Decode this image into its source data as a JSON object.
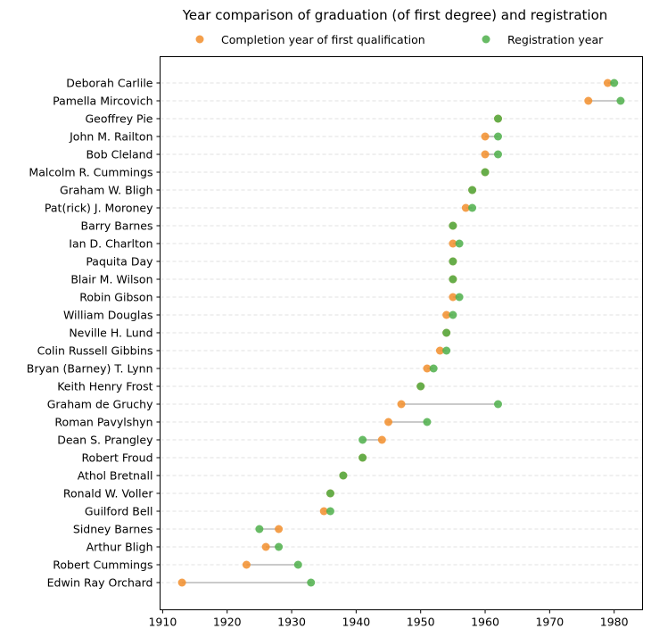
{
  "chart_data": {
    "type": "scatter",
    "title": "Year comparison of graduation (of first degree) and registration",
    "xlabel": "",
    "ylabel": "",
    "xlim": [
      1909.6,
      1984.4
    ],
    "xticks": [
      1910,
      1920,
      1930,
      1940,
      1950,
      1960,
      1970,
      1980
    ],
    "grid": "horizontal dashed",
    "legend_position": "top-center",
    "series": [
      {
        "name": "Completion year of first qualification",
        "color": "#f28e2b"
      },
      {
        "name": "Registration year",
        "color": "#4daf4a"
      }
    ],
    "people": [
      {
        "name": "Deborah Carlile",
        "completion": 1979,
        "registration": 1980
      },
      {
        "name": "Pamella Mircovich",
        "completion": 1976,
        "registration": 1981
      },
      {
        "name": "Geoffrey Pie",
        "completion": 1962,
        "registration": 1962
      },
      {
        "name": "John M. Railton",
        "completion": 1960,
        "registration": 1962
      },
      {
        "name": "Bob Cleland",
        "completion": 1960,
        "registration": 1962
      },
      {
        "name": "Malcolm R. Cummings",
        "completion": 1960,
        "registration": 1960
      },
      {
        "name": "Graham W. Bligh",
        "completion": 1958,
        "registration": 1958
      },
      {
        "name": "Pat(rick) J. Moroney",
        "completion": 1957,
        "registration": 1958
      },
      {
        "name": "Barry Barnes",
        "completion": 1955,
        "registration": 1955
      },
      {
        "name": "Ian D. Charlton",
        "completion": 1955,
        "registration": 1956
      },
      {
        "name": "Paquita Day",
        "completion": 1955,
        "registration": 1955
      },
      {
        "name": "Blair M. Wilson",
        "completion": 1955,
        "registration": 1955
      },
      {
        "name": "Robin Gibson",
        "completion": 1955,
        "registration": 1956
      },
      {
        "name": "William Douglas",
        "completion": 1954,
        "registration": 1955
      },
      {
        "name": "Neville H. Lund",
        "completion": 1954,
        "registration": 1954
      },
      {
        "name": "Colin Russell Gibbins",
        "completion": 1953,
        "registration": 1954
      },
      {
        "name": "Bryan (Barney) T. Lynn",
        "completion": 1951,
        "registration": 1952
      },
      {
        "name": "Keith Henry Frost",
        "completion": 1950,
        "registration": 1950
      },
      {
        "name": "Graham de Gruchy",
        "completion": 1947,
        "registration": 1962
      },
      {
        "name": "Roman Pavylshyn",
        "completion": 1945,
        "registration": 1951
      },
      {
        "name": "Dean S. Prangley",
        "completion": 1944,
        "registration": 1941
      },
      {
        "name": "Robert Froud",
        "completion": 1941,
        "registration": 1941
      },
      {
        "name": "Athol Bretnall",
        "completion": 1938,
        "registration": 1938
      },
      {
        "name": "Ronald W. Voller",
        "completion": 1936,
        "registration": 1936
      },
      {
        "name": "Guilford Bell",
        "completion": 1935,
        "registration": 1936
      },
      {
        "name": "Sidney Barnes",
        "completion": 1928,
        "registration": 1925
      },
      {
        "name": "Arthur Bligh",
        "completion": 1926,
        "registration": 1928
      },
      {
        "name": "Robert Cummings",
        "completion": 1923,
        "registration": 1931
      },
      {
        "name": "Edwin Ray Orchard",
        "completion": 1913,
        "registration": 1933
      }
    ]
  }
}
